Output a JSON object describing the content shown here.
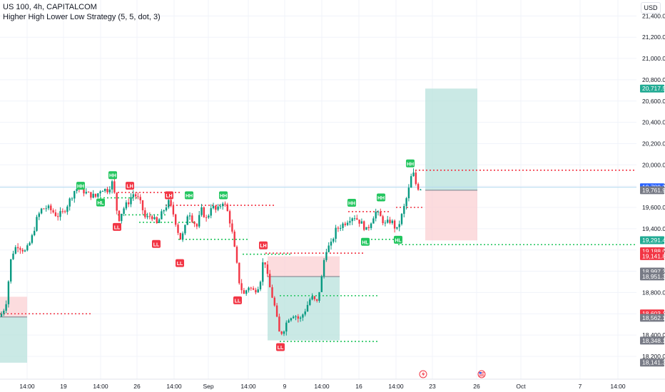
{
  "legend": {
    "symbol": "US 100, 4h, CAPITALCOM",
    "strategy": "Higher High Lower Low Strategy (5, 5, dot, 3)"
  },
  "currency_button": "USD",
  "colors": {
    "up": "#089981",
    "down": "#f23645",
    "hh_label": "#22c55e",
    "ll_label": "#f23645",
    "green_line": "#22c55e",
    "red_line": "#f23645",
    "target_zone": "#b8e2dc",
    "stop_zone": "#fbd0d3",
    "axis_text": "#131722",
    "price_tag_grey": "#787b86"
  },
  "chart_data": {
    "type": "candlestick",
    "ylim": [
      18100,
      21500
    ],
    "y_ticks": [
      "21,400.0",
      "21,200.0",
      "21,000.0",
      "20,800.0",
      "20,600.0",
      "20,400.0",
      "20,200.0",
      "20,000.0",
      "19,800.0",
      "19,600.0",
      "19,400.0",
      "19,200.0",
      "19,000.0",
      "18,800.0",
      "18,600.0",
      "18,400.0",
      "18,200.0"
    ],
    "x_ticks": [
      "14:00",
      "19",
      "14:00",
      "26",
      "14:00",
      "Sep",
      "14:00",
      "9",
      "14:00",
      "16",
      "14:00",
      "23",
      "26",
      "Oct",
      "7",
      "14:00"
    ],
    "price_tags": [
      {
        "text": "20,717.5",
        "value": 20717.5,
        "kind": "green"
      },
      {
        "text": "19,789.3",
        "value": 19789.3,
        "kind": "blue"
      },
      {
        "text": "19,761.9",
        "value": 19761.9,
        "kind": "grey"
      },
      {
        "text": "19,291.4",
        "value": 19291.4,
        "kind": "green"
      },
      {
        "text": "19,188.0",
        "value": 19188.0,
        "kind": "red"
      },
      {
        "text": "19,141.8",
        "value": 19141.8,
        "kind": "red"
      },
      {
        "text": "18,997.2",
        "value": 18997.2,
        "kind": "grey"
      },
      {
        "text": "18,951.3",
        "value": 18951.3,
        "kind": "grey"
      },
      {
        "text": "18,603.1",
        "value": 18603.1,
        "kind": "red"
      },
      {
        "text": "18,562.1",
        "value": 18562.1,
        "kind": "grey"
      },
      {
        "text": "18,348.1",
        "value": 18348.1,
        "kind": "grey"
      },
      {
        "text": "18,141.3",
        "value": 18141.3,
        "kind": "grey"
      }
    ],
    "pivot_labels": [
      {
        "text": "HH",
        "kind": "high",
        "price": 19750
      },
      {
        "text": "HH",
        "kind": "high",
        "price": 19850
      },
      {
        "text": "HL",
        "kind": "low",
        "price": 19700
      },
      {
        "text": "LH",
        "kind": "high",
        "price": 19750
      },
      {
        "text": "LL",
        "kind": "low",
        "price": 19470
      },
      {
        "text": "LH",
        "kind": "high",
        "price": 19660
      },
      {
        "text": "HH",
        "kind": "high",
        "price": 19660
      },
      {
        "text": "LL",
        "kind": "low",
        "price": 19310
      },
      {
        "text": "HH",
        "kind": "high",
        "price": 19660
      },
      {
        "text": "LL",
        "kind": "low",
        "price": 19130
      },
      {
        "text": "LH",
        "kind": "high",
        "price": 19190
      },
      {
        "text": "LL",
        "kind": "low",
        "price": 18780
      },
      {
        "text": "LL",
        "kind": "low",
        "price": 18340
      },
      {
        "text": "HH",
        "kind": "high",
        "price": 19590
      },
      {
        "text": "HH",
        "kind": "high",
        "price": 19640
      },
      {
        "text": "HL",
        "kind": "low",
        "price": 19330
      },
      {
        "text": "HL",
        "kind": "low",
        "price": 19350
      },
      {
        "text": "HH",
        "kind": "high",
        "price": 19960
      }
    ],
    "levels": [
      {
        "kind": "red",
        "price": 18600
      },
      {
        "kind": "red",
        "price": 19740
      },
      {
        "kind": "green",
        "price": 19690
      },
      {
        "kind": "green",
        "price": 19530
      },
      {
        "kind": "red",
        "price": 19620
      },
      {
        "kind": "green",
        "price": 19460
      },
      {
        "kind": "green",
        "price": 19300
      },
      {
        "kind": "green",
        "price": 19160
      },
      {
        "kind": "green",
        "price": 18770
      },
      {
        "kind": "red",
        "price": 19170
      },
      {
        "kind": "green",
        "price": 18340
      },
      {
        "kind": "red",
        "price": 19560
      },
      {
        "kind": "green",
        "price": 19300
      },
      {
        "kind": "red",
        "price": 19950
      },
      {
        "kind": "red",
        "price": 19600
      },
      {
        "kind": "green",
        "price": 19250
      }
    ],
    "position_zones": [
      {
        "kind": "target",
        "from": 18570,
        "to": 18140
      },
      {
        "kind": "stop",
        "from": 18570,
        "to": 18760
      },
      {
        "kind": "target",
        "from": 18950,
        "to": 18350
      },
      {
        "kind": "stop",
        "from": 18950,
        "to": 19140
      },
      {
        "kind": "target",
        "from": 19762,
        "to": 20717
      },
      {
        "kind": "stop",
        "from": 19762,
        "to": 19290
      }
    ]
  }
}
